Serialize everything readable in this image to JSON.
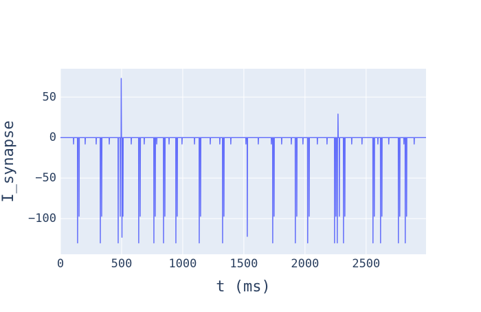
{
  "chart_data": {
    "type": "line",
    "xlabel": "t (ms)",
    "ylabel": "I_synapse",
    "color": "#636efa",
    "grid": true,
    "xlim": [
      0,
      2990
    ],
    "ylim": [
      -144,
      85
    ],
    "xticks": [
      0,
      500,
      1000,
      1500,
      2000,
      2500
    ],
    "yticks": [
      {
        "value": -100,
        "label": "−100"
      },
      {
        "value": -50,
        "label": "−50"
      },
      0,
      50
    ],
    "x": [
      0,
      106,
      107,
      109,
      139,
      140,
      142,
      151,
      152,
      154,
      201,
      202,
      204,
      291,
      292,
      294,
      325,
      326,
      328,
      336,
      337,
      339,
      398,
      399,
      401,
      471,
      472,
      474,
      488,
      489,
      491,
      496,
      497,
      499,
      502,
      503,
      505,
      510,
      511,
      513,
      578,
      579,
      581,
      639,
      640,
      642,
      651,
      652,
      654,
      684,
      685,
      687,
      763,
      764,
      766,
      774,
      775,
      777,
      786,
      787,
      789,
      842,
      843,
      845,
      853,
      854,
      856,
      887,
      888,
      890,
      943,
      944,
      946,
      954,
      955,
      957,
      993,
      994,
      996,
      1095,
      1096,
      1098,
      1134,
      1135,
      1137,
      1145,
      1146,
      1148,
      1224,
      1225,
      1227,
      1302,
      1303,
      1305,
      1325,
      1326,
      1328,
      1336,
      1337,
      1339,
      1392,
      1393,
      1395,
      1516,
      1517,
      1519,
      1527,
      1528,
      1530,
      1617,
      1618,
      1620,
      1724,
      1725,
      1727,
      1735,
      1736,
      1738,
      1746,
      1747,
      1749,
      1808,
      1809,
      1811,
      1887,
      1888,
      1890,
      1920,
      1921,
      1923,
      1932,
      1933,
      1935,
      1982,
      1983,
      1985,
      2021,
      2022,
      2024,
      2033,
      2034,
      2036,
      2100,
      2101,
      2103,
      2179,
      2180,
      2182,
      2241,
      2242,
      2244,
      2252,
      2253,
      2255,
      2263,
      2264,
      2266,
      2269,
      2270,
      2272,
      2280,
      2281,
      2283,
      2314,
      2315,
      2317,
      2325,
      2326,
      2328,
      2381,
      2382,
      2384,
      2465,
      2466,
      2468,
      2555,
      2556,
      2558,
      2566,
      2567,
      2569,
      2595,
      2596,
      2598,
      2617,
      2618,
      2620,
      2628,
      2629,
      2631,
      2684,
      2685,
      2687,
      2763,
      2764,
      2766,
      2774,
      2775,
      2777,
      2808,
      2809,
      2811,
      2819,
      2820,
      2822,
      2830,
      2831,
      2833,
      2892,
      2893,
      2895,
      2990
    ],
    "values": [
      0,
      0,
      -8,
      0,
      0,
      -130,
      0,
      0,
      -97,
      0,
      0,
      -8,
      0,
      0,
      -8,
      0,
      0,
      -130,
      0,
      0,
      -97,
      0,
      0,
      -8,
      0,
      0,
      -130,
      0,
      0,
      -97,
      0,
      0,
      73,
      0,
      0,
      -123,
      0,
      0,
      -97,
      0,
      0,
      -8,
      0,
      0,
      -130,
      0,
      0,
      -97,
      0,
      0,
      -8,
      0,
      0,
      -130,
      0,
      0,
      -97,
      0,
      0,
      -8,
      0,
      0,
      -130,
      0,
      0,
      -97,
      0,
      0,
      -8,
      0,
      0,
      -130,
      0,
      0,
      -97,
      0,
      0,
      -8,
      0,
      0,
      -8,
      0,
      0,
      -130,
      0,
      0,
      -97,
      0,
      0,
      -8,
      0,
      0,
      -8,
      0,
      0,
      -130,
      0,
      0,
      -97,
      0,
      0,
      -8,
      0,
      0,
      -8,
      0,
      0,
      -122,
      0,
      0,
      -8,
      0,
      0,
      -8,
      0,
      0,
      -130,
      0,
      0,
      -97,
      0,
      0,
      -8,
      0,
      0,
      -8,
      0,
      0,
      -130,
      0,
      0,
      -97,
      0,
      0,
      -8,
      0,
      0,
      -130,
      0,
      0,
      -97,
      0,
      0,
      -8,
      0,
      0,
      -8,
      0,
      0,
      -130,
      0,
      0,
      -97,
      0,
      0,
      -130,
      0,
      0,
      29,
      0,
      0,
      -97,
      0,
      0,
      -130,
      0,
      0,
      -97,
      0,
      0,
      -8,
      0,
      0,
      -8,
      0,
      0,
      -130,
      0,
      0,
      -97,
      0,
      0,
      -8,
      0,
      0,
      -130,
      0,
      0,
      -97,
      0,
      0,
      -8,
      0,
      0,
      -130,
      0,
      0,
      -97,
      0,
      0,
      -8,
      0,
      0,
      -130,
      0,
      0,
      -97,
      0,
      0,
      -8,
      0,
      0
    ]
  }
}
